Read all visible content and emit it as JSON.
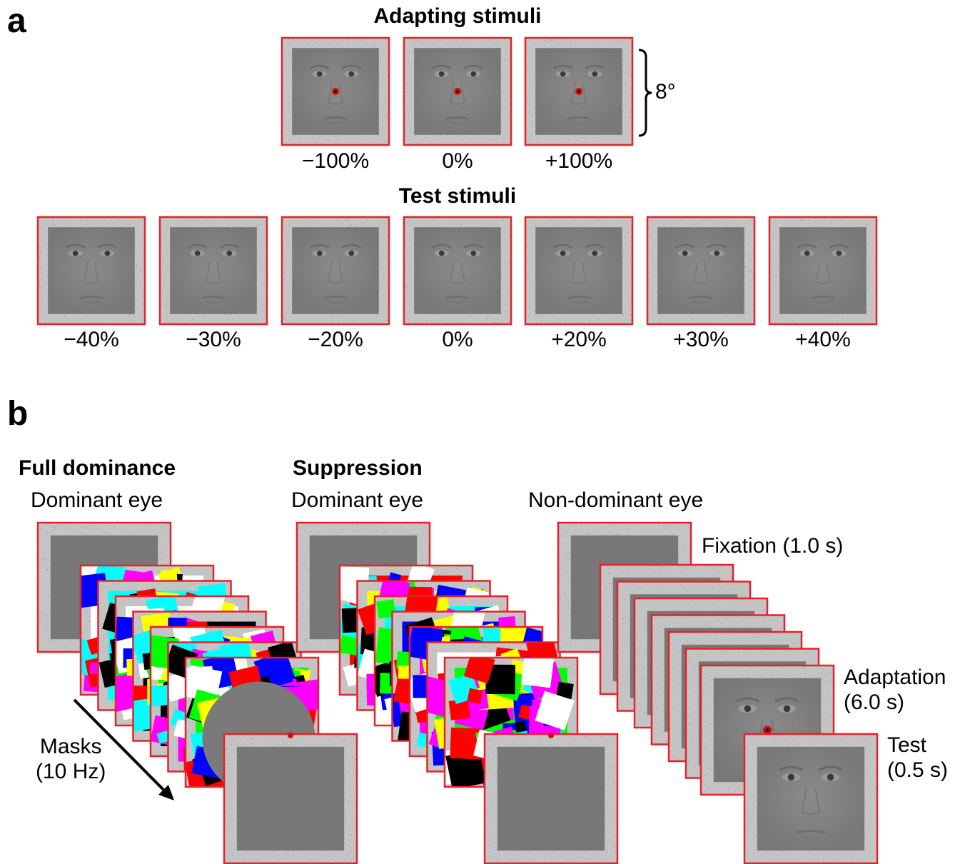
{
  "panel_a": {
    "letter": "a",
    "adapting_title": "Adapting stimuli",
    "adapting_labels": [
      "−100%",
      "0%",
      "+100%"
    ],
    "size_label": "8°",
    "test_title": "Test stimuli",
    "test_labels": [
      "−40%",
      "−30%",
      "−20%",
      "0%",
      "+20%",
      "+30%",
      "+40%"
    ]
  },
  "panel_b": {
    "letter": "b",
    "full_dominance_title": "Full dominance",
    "full_dominance_eye": "Dominant eye",
    "suppression_title": "Suppression",
    "suppression_dominant_eye": "Dominant eye",
    "suppression_nondominant_eye": "Non-dominant eye",
    "fixation_label": "Fixation (1.0 s)",
    "adaptation_label": "Adaptation\n(6.0 s)",
    "test_label": "Test\n(0.5 s)",
    "masks_label": "Masks\n(10 Hz)"
  },
  "colors": {
    "frame_border": "#e8202a",
    "noise_light": "#f0f0f0",
    "noise_dark": "#2a2a2a",
    "face_gray": "#7c7c7c",
    "blank_gray": "#777777",
    "fixation_dot": "#d01010",
    "mask_palette": [
      "#ff0000",
      "#00ff00",
      "#0000ff",
      "#ffff00",
      "#ff00ff",
      "#00ffff",
      "#ffffff",
      "#000000"
    ]
  }
}
